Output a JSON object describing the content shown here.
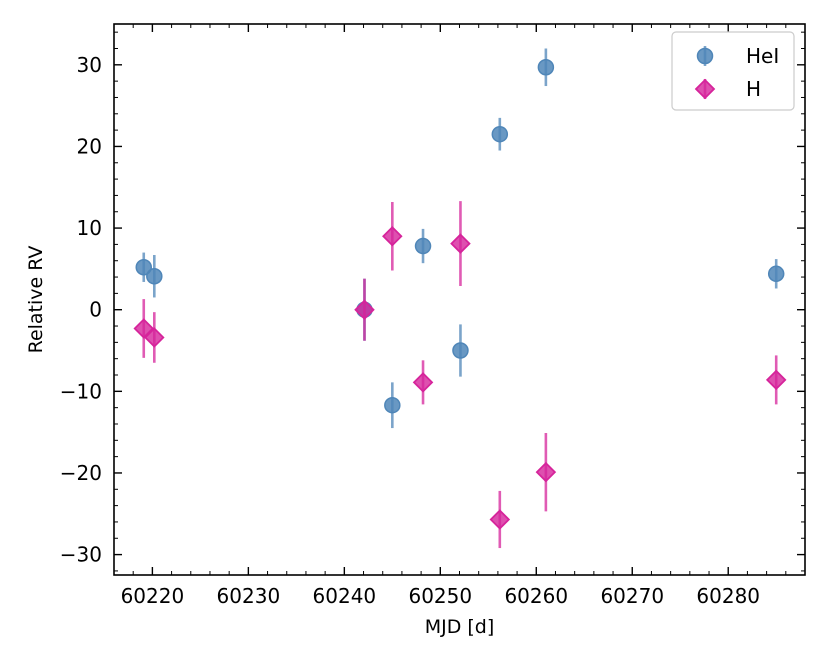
{
  "chart_data": {
    "type": "scatter",
    "xlabel": "MJD [d]",
    "ylabel": "Relative RV",
    "xlim": [
      60216,
      60288
    ],
    "ylim": [
      -32.5,
      35
    ],
    "xticks": [
      60220,
      60230,
      60240,
      60250,
      60260,
      60270,
      60280
    ],
    "yticks": [
      -30,
      -20,
      -10,
      0,
      10,
      20,
      30
    ],
    "xtick_labels": [
      "60220",
      "60230",
      "60240",
      "60250",
      "60260",
      "60270",
      "60280"
    ],
    "ytick_labels": [
      "−30",
      "−20",
      "−10",
      "0",
      "10",
      "20",
      "30"
    ],
    "grid": false,
    "legend_position": "top-right",
    "series": [
      {
        "name": "HeI",
        "marker": "circle",
        "color": "#4f86b8",
        "points": [
          {
            "x": 60219.1,
            "y": 5.2,
            "err": 1.8
          },
          {
            "x": 60220.2,
            "y": 4.1,
            "err": 2.6
          },
          {
            "x": 60242.1,
            "y": 0.0,
            "err": 3.8
          },
          {
            "x": 60245.0,
            "y": -11.7,
            "err": 2.8
          },
          {
            "x": 60248.2,
            "y": 7.8,
            "err": 2.1
          },
          {
            "x": 60252.1,
            "y": -5.0,
            "err": 3.2
          },
          {
            "x": 60256.2,
            "y": 21.5,
            "err": 2.0
          },
          {
            "x": 60261.0,
            "y": 29.7,
            "err": 2.3
          },
          {
            "x": 60285.0,
            "y": 4.4,
            "err": 1.8
          }
        ]
      },
      {
        "name": "H",
        "marker": "diamond",
        "color": "#d6249b",
        "points": [
          {
            "x": 60219.1,
            "y": -2.3,
            "err": 3.6
          },
          {
            "x": 60220.2,
            "y": -3.4,
            "err": 3.1
          },
          {
            "x": 60242.1,
            "y": 0.0,
            "err": 3.8
          },
          {
            "x": 60245.0,
            "y": 9.0,
            "err": 4.2
          },
          {
            "x": 60248.2,
            "y": -8.9,
            "err": 2.7
          },
          {
            "x": 60252.1,
            "y": 8.1,
            "err": 5.2
          },
          {
            "x": 60256.2,
            "y": -25.7,
            "err": 3.5
          },
          {
            "x": 60261.0,
            "y": -19.9,
            "err": 4.8
          },
          {
            "x": 60285.0,
            "y": -8.6,
            "err": 3.0
          }
        ]
      }
    ]
  }
}
